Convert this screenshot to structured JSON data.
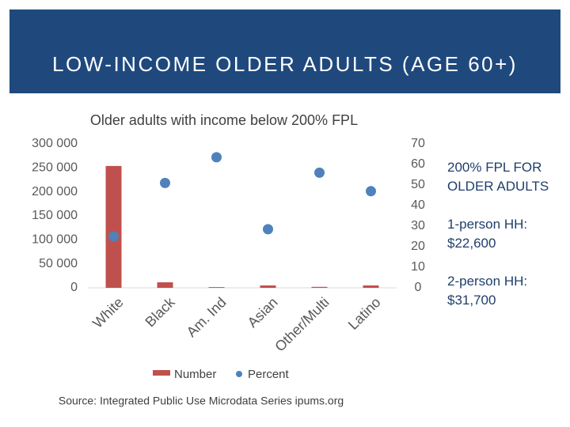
{
  "header": {
    "title": "LOW-INCOME OLDER ADULTS (AGE 60+)"
  },
  "chart_data": {
    "type": "bar",
    "title": "Older adults with income below 200% FPL",
    "categories": [
      "White",
      "Black",
      "Am. Ind",
      "Asian",
      "Other/Multi",
      "Latino"
    ],
    "series": [
      {
        "name": "Number",
        "type": "bar",
        "color": "#c0504d",
        "values": [
          254000,
          11500,
          1500,
          5000,
          2000,
          5000
        ]
      },
      {
        "name": "Percent",
        "type": "scatter",
        "axis": "y2",
        "color": "#4f81bd",
        "values": [
          25,
          51,
          63.5,
          28.5,
          56,
          47
        ]
      }
    ],
    "ylim": [
      0,
      300000
    ],
    "yticks": [
      0,
      {
        "value": 50000,
        "label": "50 000"
      },
      {
        "value": 100000,
        "label": "100 000"
      },
      {
        "value": 150000,
        "label": "150 000"
      },
      {
        "value": 200000,
        "label": "200 000"
      },
      {
        "value": 250000,
        "label": "250 000"
      },
      {
        "value": 300000,
        "label": "300 000"
      }
    ],
    "y2lim": [
      0,
      70
    ],
    "y2ticks": [
      0,
      10,
      20,
      30,
      40,
      50,
      60,
      70
    ],
    "legend": "bottom",
    "source": "Source: Integrated Public Use Microdata Series ipums.org"
  },
  "sidebar": {
    "heading": "200% FPL FOR OLDER ADULTS",
    "items": [
      "1-person HH: $22,600",
      "2-person HH: $31,700"
    ]
  }
}
